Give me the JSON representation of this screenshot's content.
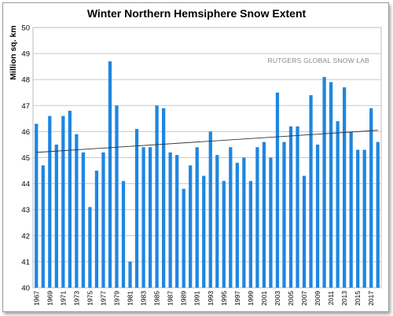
{
  "chart_data": {
    "type": "bar",
    "title": "Winter Northern Hemsiphere Snow Extent",
    "ylabel": "Million sq. km",
    "xlabel": "",
    "watermark": "RUTGERS GLOBAL SNOW LAB",
    "ylim": [
      40,
      50
    ],
    "yticks": [
      40,
      41,
      42,
      43,
      44,
      45,
      46,
      47,
      48,
      49,
      50
    ],
    "grid": true,
    "bar_color": "#1f86e0",
    "trend_color": "#333333",
    "categories": [
      1967,
      1968,
      1969,
      1970,
      1971,
      1972,
      1973,
      1974,
      1975,
      1976,
      1977,
      1978,
      1979,
      1980,
      1981,
      1982,
      1983,
      1984,
      1985,
      1986,
      1987,
      1988,
      1989,
      1990,
      1991,
      1992,
      1993,
      1994,
      1995,
      1996,
      1997,
      1998,
      1999,
      2000,
      2001,
      2002,
      2003,
      2004,
      2005,
      2006,
      2007,
      2008,
      2009,
      2010,
      2011,
      2012,
      2013,
      2014,
      2015,
      2016,
      2017,
      2018
    ],
    "x_tick_labels": [
      "1967",
      "1969",
      "1971",
      "1973",
      "1975",
      "1977",
      "1979",
      "1981",
      "1983",
      "1985",
      "1987",
      "1989",
      "1991",
      "1993",
      "1995",
      "1997",
      "1999",
      "2001",
      "2003",
      "2005",
      "2007",
      "2009",
      "2011",
      "2013",
      "2015",
      "2017"
    ],
    "values": [
      46.3,
      44.7,
      46.6,
      45.5,
      46.6,
      46.8,
      45.9,
      45.2,
      43.1,
      44.5,
      45.2,
      48.7,
      47.0,
      44.1,
      41.0,
      46.1,
      45.4,
      45.4,
      47.0,
      46.9,
      45.2,
      45.1,
      43.8,
      44.7,
      45.4,
      44.3,
      46.0,
      45.1,
      44.1,
      45.4,
      44.8,
      45.0,
      44.1,
      45.4,
      45.6,
      45.0,
      47.5,
      45.6,
      46.2,
      46.2,
      44.3,
      47.4,
      45.5,
      48.1,
      47.9,
      46.4,
      47.7,
      46.0,
      45.3,
      45.3,
      46.9,
      45.6
    ],
    "trend": {
      "start": 45.2,
      "end": 46.05
    }
  }
}
